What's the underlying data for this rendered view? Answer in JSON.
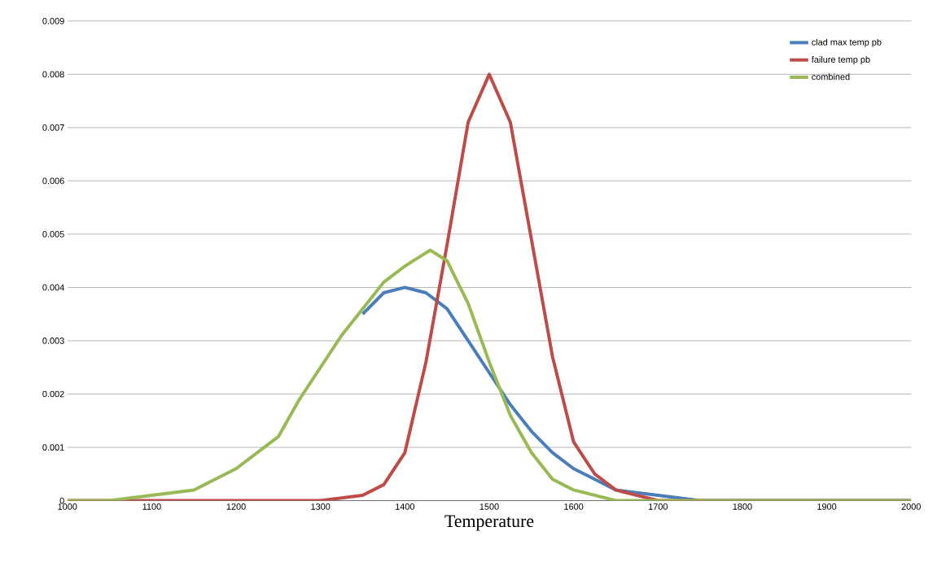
{
  "chart_data": {
    "type": "line",
    "xlabel": "Temperature",
    "xlim": [
      1000,
      2000
    ],
    "xticks": [
      1000,
      1100,
      1200,
      1300,
      1400,
      1500,
      1600,
      1700,
      1800,
      1900,
      2000
    ],
    "ylim": [
      0,
      0.009
    ],
    "yticks": [
      0,
      0.001,
      0.002,
      0.003,
      0.004,
      0.005,
      0.006,
      0.007,
      0.008,
      0.009
    ],
    "grid": "y",
    "legend": "top right",
    "marker": "none",
    "line_style": "solid",
    "series": [
      {
        "name": "clad max temp pb",
        "color": "#4a7ebb",
        "x": [
          1350,
          1375,
          1400,
          1425,
          1450,
          1475,
          1500,
          1525,
          1550,
          1575,
          1600,
          1625,
          1650,
          1700,
          1750,
          1800,
          2000
        ],
        "values": [
          0.0035,
          0.0039,
          0.004,
          0.0039,
          0.0036,
          0.003,
          0.0024,
          0.0018,
          0.0013,
          0.0009,
          0.0006,
          0.0004,
          0.0002,
          0.0001,
          0,
          0,
          0
        ]
      },
      {
        "name": "failure temp pb",
        "color": "#be4b48",
        "x": [
          1000,
          1300,
          1350,
          1375,
          1400,
          1425,
          1450,
          1475,
          1500,
          1525,
          1550,
          1575,
          1600,
          1625,
          1650,
          1700,
          2000
        ],
        "values": [
          0,
          0,
          0.0001,
          0.0003,
          0.0009,
          0.0026,
          0.0048,
          0.0071,
          0.008,
          0.0071,
          0.0049,
          0.0027,
          0.0011,
          0.0005,
          0.0002,
          0,
          0
        ]
      },
      {
        "name": "combined",
        "color": "#98b954",
        "x": [
          1000,
          1050,
          1100,
          1150,
          1200,
          1225,
          1250,
          1275,
          1300,
          1325,
          1350,
          1375,
          1400,
          1430,
          1450,
          1475,
          1500,
          1525,
          1550,
          1575,
          1600,
          1650,
          1700,
          2000
        ],
        "values": [
          0,
          0,
          0.0001,
          0.0002,
          0.0006,
          0.0009,
          0.0012,
          0.0019,
          0.0025,
          0.0031,
          0.0036,
          0.0041,
          0.0044,
          0.0047,
          0.0045,
          0.0037,
          0.0026,
          0.0016,
          0.0009,
          0.0004,
          0.0002,
          0,
          0,
          0
        ]
      }
    ]
  }
}
